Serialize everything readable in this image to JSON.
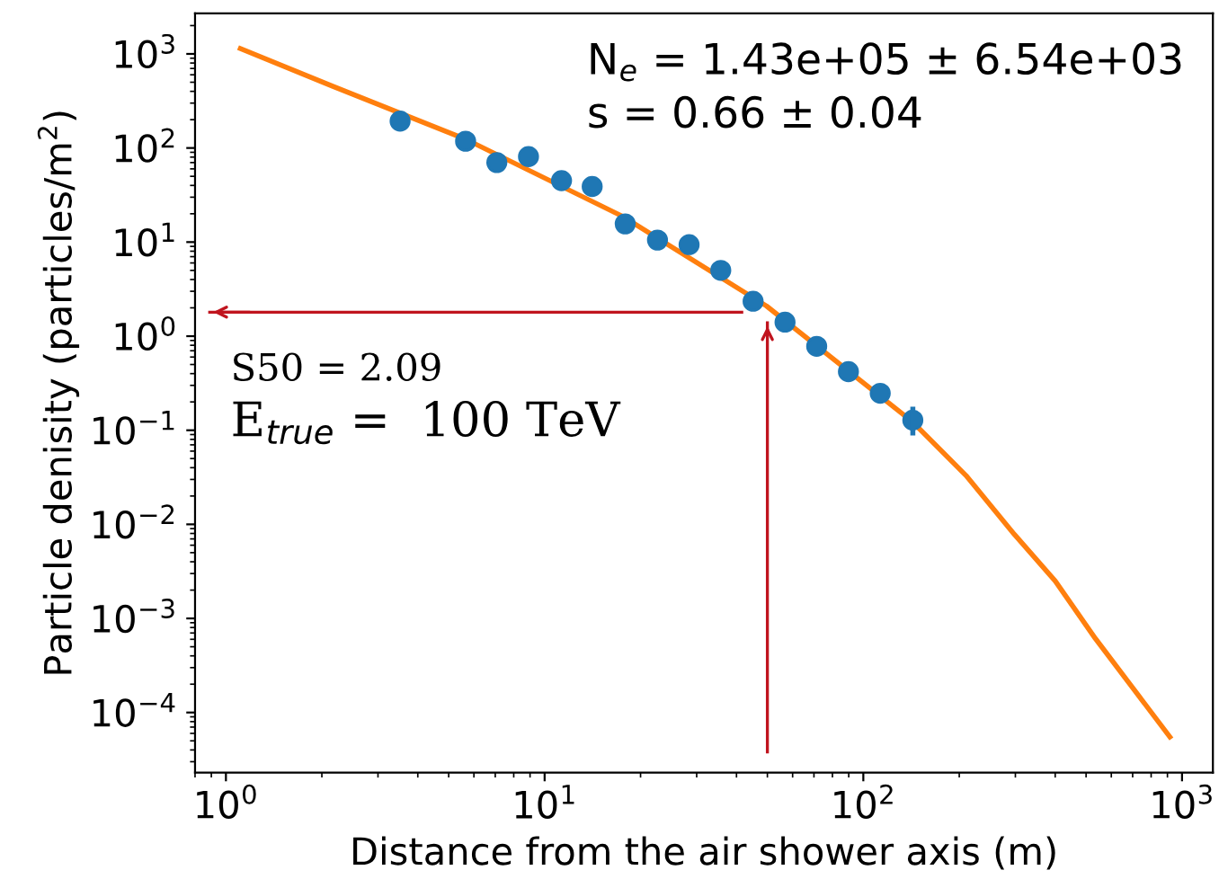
{
  "chart_data": {
    "type": "scatter",
    "xlabel": "Distance from the air shower axis (m)",
    "ylabel": "Particle denisity (particles/m$^{2}$)",
    "log": "xy",
    "grid": false,
    "legend": false,
    "marker": "circle",
    "xlim": [
      0.8,
      1250
    ],
    "ylim": [
      2.3e-05,
      2700
    ],
    "xticks": [
      {
        "value": 1,
        "label": "10$^{0}$"
      },
      {
        "value": 10,
        "label": "10$^{1}$"
      },
      {
        "value": 100,
        "label": "10$^{2}$"
      },
      {
        "value": 1000,
        "label": "10$^{3}$"
      }
    ],
    "yticks": [
      {
        "value": 0.0001,
        "label": "10$^{−4}$"
      },
      {
        "value": 0.001,
        "label": "10$^{−3}$"
      },
      {
        "value": 0.01,
        "label": "10$^{−2}$"
      },
      {
        "value": 0.1,
        "label": "10$^{−1}$"
      },
      {
        "value": 1,
        "label": "10$^{0}$"
      },
      {
        "value": 10,
        "label": "10$^{1}$"
      },
      {
        "value": 100,
        "label": "10$^{2}$"
      },
      {
        "value": 1000,
        "label": "10$^{3}$"
      }
    ],
    "series": [
      {
        "type": "line",
        "color": "#ff7f0e",
        "marker": "none",
        "line_style": "solid",
        "x": [
          1.11,
          2.16,
          5.65,
          17.6,
          49.7,
          143,
          210,
          298,
          400,
          535,
          916
        ],
        "values": [
          1140,
          454,
          124,
          18.7,
          2.09,
          0.122,
          0.033,
          0.0078,
          0.0025,
          0.00061,
          5.5e-05
        ]
      },
      {
        "color": "#1f77b4",
        "x": [
          3.52,
          5.65,
          7.08,
          8.9,
          11.3,
          14.1,
          17.9,
          22.6,
          28.4,
          35.7,
          45.1,
          56.8,
          71.4,
          89.8,
          113,
          143
        ],
        "values": [
          193,
          118,
          70,
          81,
          45,
          39,
          15.6,
          10.5,
          9.4,
          5.0,
          2.35,
          1.41,
          0.78,
          0.42,
          0.247,
          0.128
        ],
        "errors": [
          null,
          null,
          null,
          null,
          null,
          null,
          null,
          null,
          null,
          null,
          null,
          null,
          null,
          null,
          null,
          [
            0.088,
            0.178
          ]
        ]
      }
    ],
    "ref_lines": [
      {
        "axis": "x",
        "value": 50,
        "color": "#c0141e"
      },
      {
        "axis": "y",
        "value": 1.8,
        "color": "#c0141e"
      }
    ],
    "annotations": [
      "N$_{e}$ = 1.43e+05 ± 6.54e+03",
      "s = 0.66 ± 0.04",
      "S50 = 2.09",
      "E$_{true}$ =  100 TeV"
    ]
  }
}
